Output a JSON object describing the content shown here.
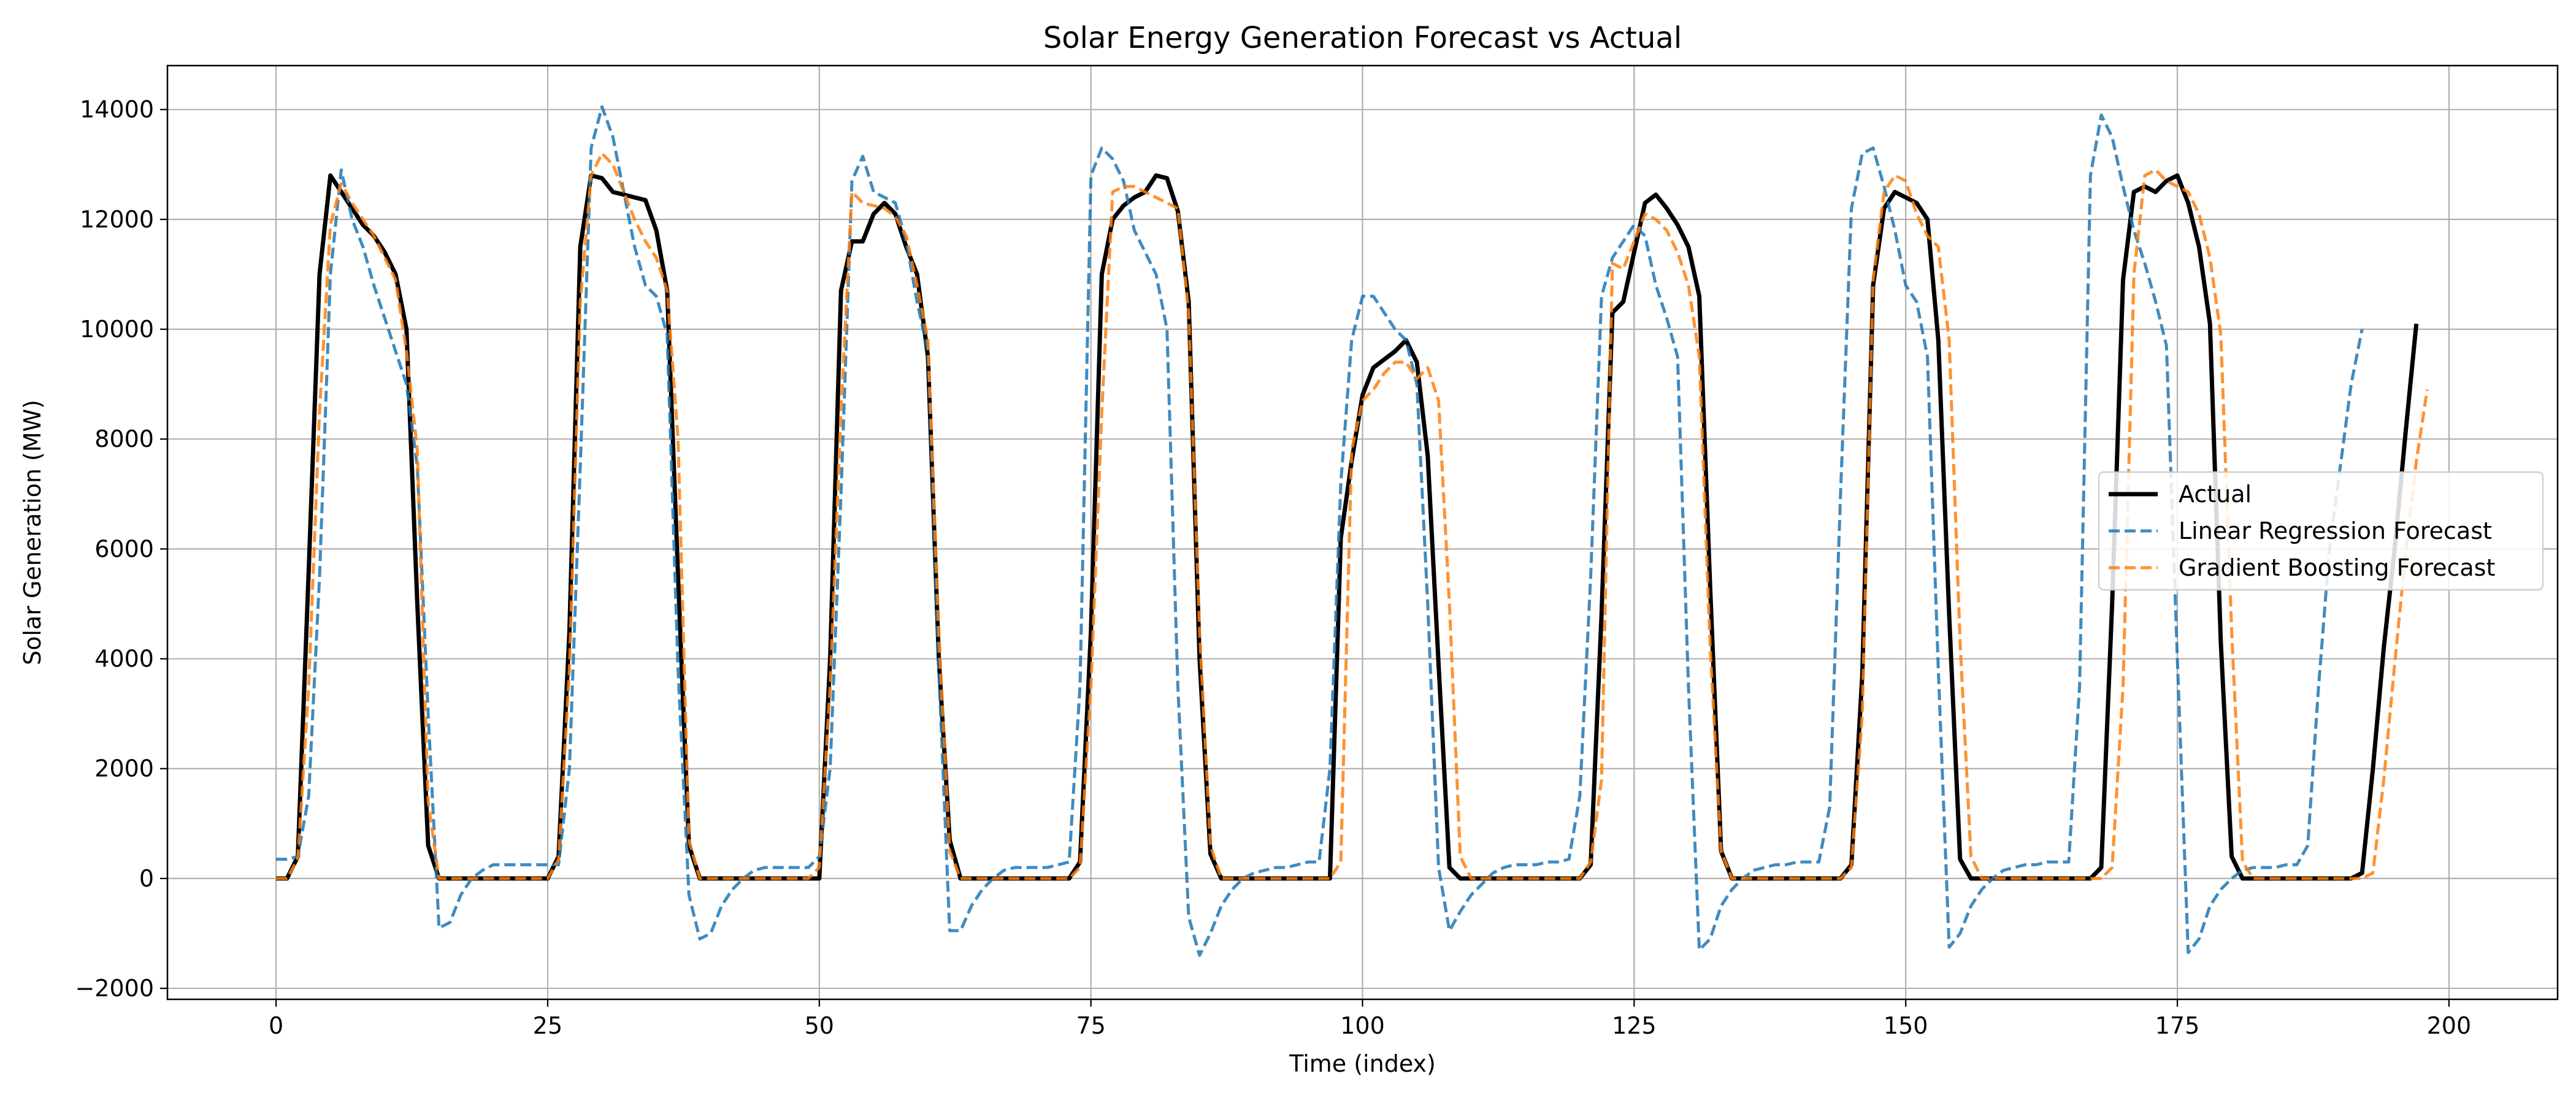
{
  "chart_data": {
    "type": "line",
    "title": "Solar Energy Generation Forecast vs Actual",
    "xlabel": "Time (index)",
    "ylabel": "Solar Generation (MW)",
    "xlim": [
      -10,
      210
    ],
    "ylim": [
      -2200,
      14800
    ],
    "xticks": [
      0,
      25,
      50,
      75,
      100,
      125,
      150,
      175,
      200
    ],
    "yticks": [
      -2000,
      0,
      2000,
      4000,
      6000,
      8000,
      10000,
      12000,
      14000
    ],
    "xtick_labels": [
      "0",
      "25",
      "50",
      "75",
      "100",
      "125",
      "150",
      "175",
      "200"
    ],
    "ytick_labels": [
      "−2000",
      "0",
      "2000",
      "4000",
      "6000",
      "8000",
      "10000",
      "12000",
      "14000"
    ],
    "grid": true,
    "legend_position": "center-right",
    "series": [
      {
        "name": "Actual",
        "color": "#000000",
        "style": "solid",
        "values": [
          0,
          0,
          400,
          5600,
          11000,
          12800,
          12500,
          12200,
          11900,
          11700,
          11400,
          11000,
          10000,
          5000,
          600,
          0,
          0,
          0,
          0,
          0,
          0,
          0,
          0,
          0,
          0,
          0,
          400,
          4500,
          11500,
          12800,
          12750,
          12500,
          12450,
          12400,
          12350,
          11800,
          10700,
          5500,
          600,
          0,
          0,
          0,
          0,
          0,
          0,
          0,
          0,
          0,
          0,
          0,
          0,
          4000,
          10700,
          11600,
          11600,
          12100,
          12300,
          12100,
          11500,
          11000,
          9500,
          4000,
          700,
          0,
          0,
          0,
          0,
          0,
          0,
          0,
          0,
          0,
          0,
          0,
          300,
          4500,
          11000,
          12000,
          12250,
          12400,
          12500,
          12800,
          12750,
          12150,
          10500,
          4000,
          450,
          0,
          0,
          0,
          0,
          0,
          0,
          0,
          0,
          0,
          0,
          0,
          6200,
          7600,
          8800,
          9300,
          9450,
          9600,
          9800,
          9400,
          7700,
          3900,
          200,
          0,
          0,
          0,
          0,
          0,
          0,
          0,
          0,
          0,
          0,
          0,
          0,
          250,
          4800,
          10300,
          10500,
          11400,
          12300,
          12450,
          12200,
          11900,
          11500,
          10600,
          5300,
          500,
          0,
          0,
          0,
          0,
          0,
          0,
          0,
          0,
          0,
          0,
          0,
          250,
          3700,
          10800,
          12200,
          12500,
          12400,
          12300,
          12000,
          9800,
          4800,
          350,
          0,
          0,
          0,
          0,
          0,
          0,
          0,
          0,
          0,
          0,
          0,
          0,
          200,
          5000,
          10900,
          12500,
          12600,
          12500,
          12700,
          12800,
          12300,
          11500,
          10100,
          4300,
          400,
          0,
          0,
          0,
          0,
          0,
          0,
          0,
          0,
          0,
          0,
          0,
          100,
          2000,
          4200,
          6000,
          8100,
          10100
        ]
      },
      {
        "name": "Linear Regression Forecast",
        "color": "#1f77b4",
        "style": "dashed",
        "values": [
          350,
          350,
          400,
          1500,
          5500,
          11000,
          12900,
          12000,
          11500,
          10800,
          10200,
          9600,
          9000,
          7500,
          3000,
          -900,
          -800,
          -300,
          0,
          150,
          250,
          250,
          250,
          250,
          250,
          250,
          250,
          2000,
          7500,
          13300,
          14050,
          13500,
          12500,
          11500,
          10800,
          10600,
          9900,
          3800,
          -300,
          -1100,
          -1000,
          -500,
          -200,
          0,
          150,
          200,
          200,
          200,
          200,
          200,
          400,
          2000,
          7000,
          12700,
          13150,
          12500,
          12400,
          12300,
          11600,
          10500,
          9600,
          3800,
          -950,
          -950,
          -500,
          -200,
          0,
          150,
          200,
          200,
          200,
          200,
          250,
          300,
          3500,
          12800,
          13300,
          13100,
          12700,
          11800,
          11400,
          11000,
          10000,
          3500,
          -700,
          -1400,
          -1000,
          -500,
          -200,
          0,
          100,
          150,
          200,
          200,
          250,
          300,
          300,
          2000,
          7200,
          9800,
          10600,
          10600,
          10300,
          10000,
          9800,
          9000,
          5000,
          200,
          -950,
          -600,
          -300,
          -100,
          100,
          200,
          250,
          250,
          250,
          300,
          300,
          350,
          1500,
          5500,
          10600,
          11300,
          11600,
          11900,
          11700,
          10800,
          10200,
          9500,
          3500,
          -1300,
          -1100,
          -500,
          -200,
          0,
          150,
          200,
          250,
          250,
          300,
          300,
          300,
          1300,
          7000,
          12200,
          13200,
          13300,
          12600,
          11800,
          10800,
          10500,
          9500,
          3800,
          -1250,
          -1000,
          -500,
          -200,
          0,
          150,
          200,
          250,
          250,
          300,
          300,
          300,
          3500,
          12800,
          13900,
          13500,
          12600,
          11800,
          11200,
          10500,
          9700,
          4000,
          -1350,
          -1100,
          -500,
          -200,
          0,
          150,
          200,
          200,
          200,
          250,
          250,
          600,
          3500,
          6000,
          7500,
          9000,
          10000
        ]
      },
      {
        "name": "Gradient Boosting Forecast",
        "color": "#ff7f0e",
        "style": "dashed",
        "values": [
          0,
          0,
          350,
          3500,
          8500,
          11900,
          12650,
          12300,
          12000,
          11700,
          11300,
          10900,
          9600,
          7800,
          1400,
          0,
          0,
          0,
          0,
          0,
          0,
          0,
          0,
          0,
          0,
          0,
          350,
          3800,
          10500,
          12800,
          13200,
          13000,
          12500,
          12000,
          11600,
          11300,
          10700,
          8000,
          700,
          0,
          0,
          0,
          0,
          0,
          0,
          0,
          0,
          0,
          0,
          0,
          200,
          3500,
          8500,
          12500,
          12300,
          12250,
          12200,
          12050,
          11700,
          10800,
          9800,
          4500,
          500,
          0,
          0,
          0,
          0,
          0,
          0,
          0,
          0,
          0,
          0,
          0,
          200,
          3500,
          8500,
          12500,
          12600,
          12600,
          12500,
          12400,
          12300,
          12200,
          10300,
          4500,
          600,
          0,
          0,
          0,
          0,
          0,
          0,
          0,
          0,
          0,
          0,
          0,
          300,
          7800,
          8700,
          8900,
          9200,
          9400,
          9400,
          9100,
          9300,
          8700,
          5000,
          400,
          0,
          0,
          0,
          0,
          0,
          0,
          0,
          0,
          0,
          0,
          0,
          300,
          1800,
          11200,
          11100,
          11600,
          12100,
          12000,
          11800,
          11400,
          10800,
          9500,
          4200,
          500,
          0,
          0,
          0,
          0,
          0,
          0,
          0,
          0,
          0,
          0,
          0,
          200,
          3000,
          10900,
          12500,
          12800,
          12700,
          12100,
          11700,
          11500,
          9800,
          4300,
          400,
          0,
          0,
          0,
          0,
          0,
          0,
          0,
          0,
          0,
          0,
          0,
          0,
          200,
          3500,
          11000,
          12800,
          12900,
          12700,
          12600,
          12500,
          12100,
          11300,
          9900,
          4500,
          300,
          0,
          0,
          0,
          0,
          0,
          0,
          0,
          0,
          0,
          0,
          0,
          100,
          1800,
          3900,
          5900,
          7600,
          8900
        ]
      }
    ]
  }
}
